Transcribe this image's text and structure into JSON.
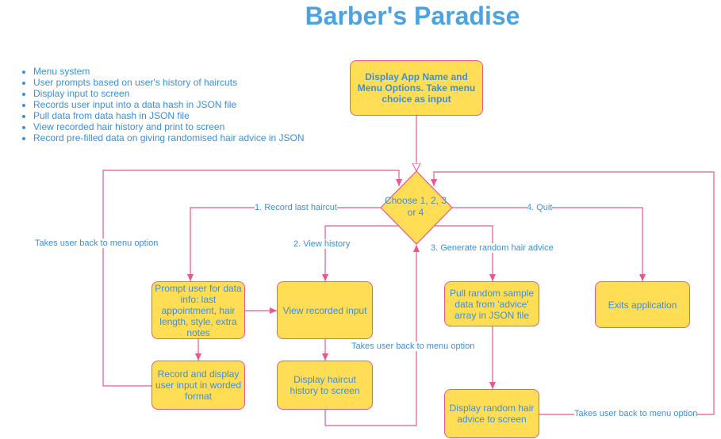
{
  "title": "Barber's Paradise",
  "bullets": [
    "Menu system",
    "User prompts based on user's history of haircuts",
    "Display input to screen",
    "Records user input into a data hash in JSON file",
    "Pull data from data hash in JSON file",
    "View recorded hair history and print to screen",
    "Record pre-filled data on giving randomised hair advice in JSON"
  ],
  "nodes": {
    "start": "Display App Name and Menu Options. Take menu choice as input",
    "decision": "Choose 1, 2, 3 or 4",
    "prompt": "Prompt user for data info: last appointment, hair length, style, extra notes",
    "record": "Record and display user input in worded format",
    "view": "View recorded input",
    "history": "Display haircut history to screen",
    "pull": "Pull random sample data from 'advice' array in JSON file",
    "advice": "Display random hair advice to screen",
    "exit": "Exits application"
  },
  "edges": {
    "opt1": "1. Record last haircut",
    "opt2": "2. View history",
    "opt3": "3. Generate random hair advice",
    "opt4": "4. Quit",
    "back_left": "Takes user back to menu option",
    "back_mid": "Takes user back to menu option",
    "back_right": "Takes user back to menu option"
  },
  "colors": {
    "fill": "#ffdd55",
    "stroke": "#e8578f",
    "text": "#3d8fd9",
    "title": "#4da2e0"
  }
}
